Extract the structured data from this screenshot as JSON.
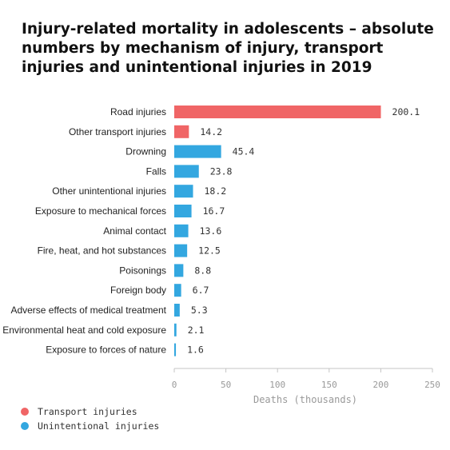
{
  "chart_data": {
    "type": "bar",
    "orientation": "horizontal",
    "title": "Injury-related mortality in adolescents – absolute numbers by mechanism of injury, transport injuries and unintentional injuries in 2019",
    "xlabel": "Deaths (thousands)",
    "xlim": [
      0,
      250
    ],
    "xticks": [
      0,
      50,
      100,
      150,
      200,
      250
    ],
    "grid": false,
    "legend_position": "bottom-left",
    "categories": [
      "Road injuries",
      "Other transport injuries",
      "Drowning",
      "Falls",
      "Other unintentional injuries",
      "Exposure to mechanical forces",
      "Animal contact",
      "Fire, heat, and hot substances",
      "Poisonings",
      "Foreign body",
      "Adverse effects of medical treatment",
      "Environmental heat and cold exposure",
      "Exposure to forces of nature"
    ],
    "values": [
      200.1,
      14.2,
      45.4,
      23.8,
      18.2,
      16.7,
      13.6,
      12.5,
      8.8,
      6.7,
      5.3,
      2.1,
      1.6
    ],
    "value_labels": [
      "200.1",
      "14.2",
      "45.4",
      "23.8",
      "18.2",
      "16.7",
      "13.6",
      "12.5",
      "8.8",
      "6.7",
      "5.3",
      "2.1",
      "1.6"
    ],
    "groups": [
      "transport",
      "transport",
      "unintentional",
      "unintentional",
      "unintentional",
      "unintentional",
      "unintentional",
      "unintentional",
      "unintentional",
      "unintentional",
      "unintentional",
      "unintentional",
      "unintentional"
    ],
    "legend": [
      {
        "key": "transport",
        "label": "Transport injuries",
        "color": "#f06566"
      },
      {
        "key": "unintentional",
        "label": "Unintentional injuries",
        "color": "#33a7e0"
      }
    ]
  }
}
